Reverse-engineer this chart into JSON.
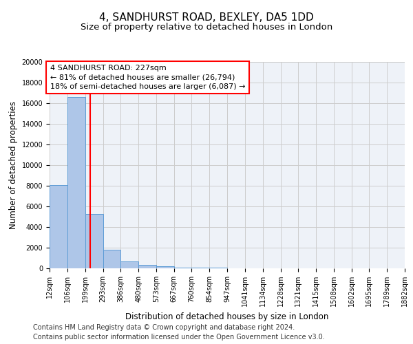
{
  "title": "4, SANDHURST ROAD, BEXLEY, DA5 1DD",
  "subtitle": "Size of property relative to detached houses in London",
  "xlabel": "Distribution of detached houses by size in London",
  "ylabel": "Number of detached properties",
  "bar_color": "#aec6e8",
  "bar_edge_color": "#5b9bd5",
  "grid_color": "#cccccc",
  "bg_color": "#eef2f8",
  "red_line_color": "red",
  "annotation_text": "4 SANDHURST ROAD: 227sqm\n← 81% of detached houses are smaller (26,794)\n18% of semi-detached houses are larger (6,087) →",
  "property_size_sqm": 227,
  "bin_edges": [
    12,
    106,
    199,
    293,
    386,
    480,
    573,
    667,
    760,
    854,
    947,
    1041,
    1134,
    1228,
    1321,
    1415,
    1508,
    1602,
    1695,
    1789,
    1882
  ],
  "bar_heights": [
    8100,
    16600,
    5300,
    1800,
    700,
    350,
    200,
    100,
    55,
    35,
    22,
    15,
    10,
    8,
    5,
    4,
    3,
    2,
    1,
    1
  ],
  "tick_labels": [
    "12sqm",
    "106sqm",
    "199sqm",
    "293sqm",
    "386sqm",
    "480sqm",
    "573sqm",
    "667sqm",
    "760sqm",
    "854sqm",
    "947sqm",
    "1041sqm",
    "1134sqm",
    "1228sqm",
    "1321sqm",
    "1415sqm",
    "1508sqm",
    "1602sqm",
    "1695sqm",
    "1789sqm",
    "1882sqm"
  ],
  "ylim": [
    0,
    20000
  ],
  "yticks": [
    0,
    2000,
    4000,
    6000,
    8000,
    10000,
    12000,
    14000,
    16000,
    18000,
    20000
  ],
  "footer_text": "Contains HM Land Registry data © Crown copyright and database right 2024.\nContains public sector information licensed under the Open Government Licence v3.0.",
  "title_fontsize": 11,
  "subtitle_fontsize": 9.5,
  "axis_label_fontsize": 8.5,
  "tick_fontsize": 7,
  "annotation_fontsize": 8,
  "footer_fontsize": 7
}
